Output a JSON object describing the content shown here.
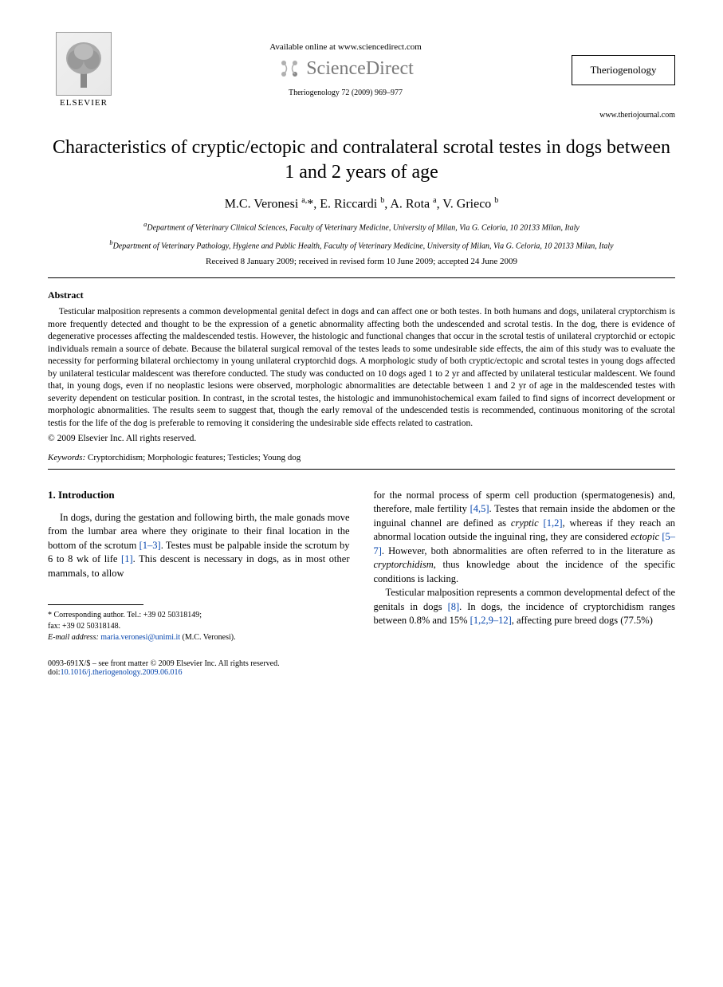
{
  "header": {
    "available_online": "Available online at www.sciencedirect.com",
    "scidirect_text": "ScienceDirect",
    "elsevier_label": "ELSEVIER",
    "journal_name": "Theriogenology",
    "citation": "Theriogenology 72 (2009) 969–977",
    "journal_url": "www.theriojournal.com"
  },
  "title": "Characteristics of cryptic/ectopic and contralateral scrotal testes in dogs between 1 and 2 years of age",
  "authors_html": "M.C. Veronesi <sup>a,</sup>*, E. Riccardi <sup>b</sup>, A. Rota <sup>a</sup>, V. Grieco <sup>b</sup>",
  "affiliations": {
    "a": "Department of Veterinary Clinical Sciences, Faculty of Veterinary Medicine, University of Milan, Via G. Celoria, 10 20133 Milan, Italy",
    "b": "Department of Veterinary Pathology, Hygiene and Public Health, Faculty of Veterinary Medicine, University of Milan, Via G. Celoria, 10 20133 Milan, Italy"
  },
  "dates": "Received 8 January 2009; received in revised form 10 June 2009; accepted 24 June 2009",
  "abstract": {
    "heading": "Abstract",
    "body": "Testicular malposition represents a common developmental genital defect in dogs and can affect one or both testes. In both humans and dogs, unilateral cryptorchism is more frequently detected and thought to be the expression of a genetic abnormality affecting both the undescended and scrotal testis. In the dog, there is evidence of degenerative processes affecting the maldescended testis. However, the histologic and functional changes that occur in the scrotal testis of unilateral cryptorchid or ectopic individuals remain a source of debate. Because the bilateral surgical removal of the testes leads to some undesirable side effects, the aim of this study was to evaluate the necessity for performing bilateral orchiectomy in young unilateral cryptorchid dogs. A morphologic study of both cryptic/ectopic and scrotal testes in young dogs affected by unilateral testicular maldescent was therefore conducted. The study was conducted on 10 dogs aged 1 to 2 yr and affected by unilateral testicular maldescent. We found that, in young dogs, even if no neoplastic lesions were observed, morphologic abnormalities are detectable between 1 and 2 yr of age in the maldescended testes with severity dependent on testicular position. In contrast, in the scrotal testes, the histologic and immunohistochemical exam failed to find signs of incorrect development or morphologic abnormalities. The results seem to suggest that, though the early removal of the undescended testis is recommended, continuous monitoring of the scrotal testis for the life of the dog is preferable to removing it considering the undesirable side effects related to castration.",
    "copyright": "© 2009 Elsevier Inc. All rights reserved."
  },
  "keywords": {
    "label": "Keywords:",
    "text": " Cryptorchidism; Morphologic features; Testicles; Young dog"
  },
  "intro": {
    "heading": "1. Introduction",
    "col1_html": "In dogs, during the gestation and following birth, the male gonads move from the lumbar area where they originate to their final location in the bottom of the scrotum <span class=\"ref-link\">[1–3]</span>. Testes must be palpable inside the scrotum by 6 to 8 wk of life <span class=\"ref-link\">[1]</span>. This descent is necessary in dogs, as in most other mammals, to allow",
    "col2_p1_html": "for the normal process of sperm cell production (spermatogenesis) and, therefore, male fertility <span class=\"ref-link\">[4,5]</span>. Testes that remain inside the abdomen or the inguinal channel are defined as <em>cryptic</em> <span class=\"ref-link\">[1,2]</span>, whereas if they reach an abnormal location outside the inguinal ring, they are considered <em>ectopic</em> <span class=\"ref-link\">[5–7]</span>. However, both abnormalities are often referred to in the literature as <em>cryptorchidism</em>, thus knowledge about the incidence of the specific conditions is lacking.",
    "col2_p2_html": "Testicular malposition represents a common developmental defect of the genitals in dogs <span class=\"ref-link\">[8]</span>. In dogs, the incidence of cryptorchidism ranges between 0.8% and 15% <span class=\"ref-link\">[1,2,9–12]</span>, affecting pure breed dogs (77.5%)"
  },
  "footnote": {
    "corresponding": "* Corresponding author. Tel.: +39 02 50318149;",
    "fax": "fax: +39 02 50318148.",
    "email_label": "E-mail address:",
    "email": "maria.veronesi@unimi.it",
    "email_suffix": " (M.C. Veronesi)."
  },
  "footer": {
    "left_line1": "0093-691X/$ – see front matter © 2009 Elsevier Inc. All rights reserved.",
    "doi_label": "doi:",
    "doi": "10.1016/j.theriogenology.2009.06.016"
  },
  "colors": {
    "link": "#0645ad",
    "text": "#000000",
    "bg": "#ffffff",
    "scidirect": "#7a7a7a"
  }
}
